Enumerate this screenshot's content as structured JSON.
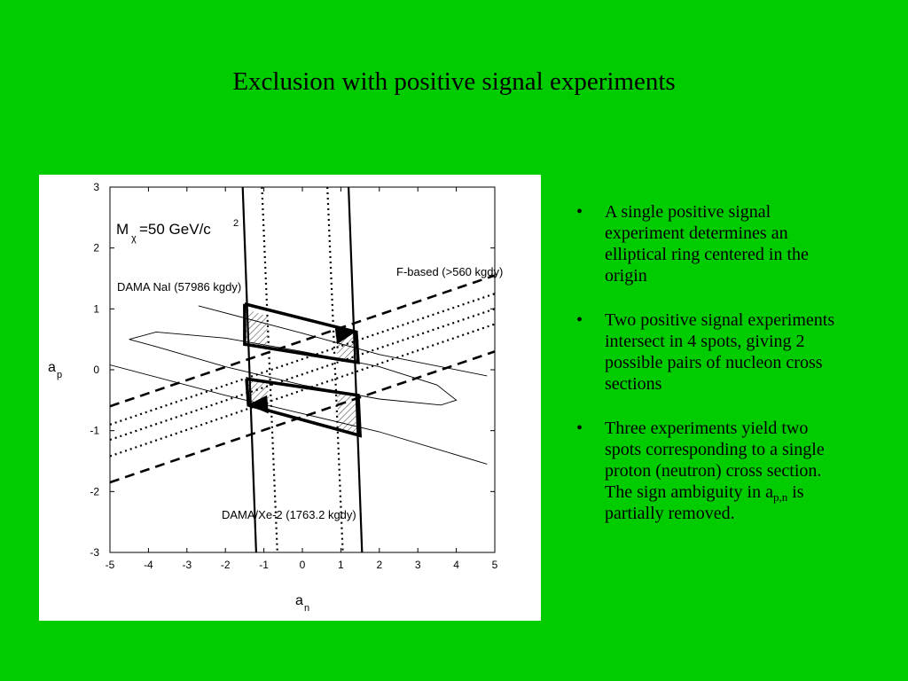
{
  "slide": {
    "title": "Exclusion with positive signal experiments",
    "bullet_symbol": "•",
    "bullets": [
      {
        "text": "A single positive signal experiment determines an elliptical ring centered in the origin"
      },
      {
        "text": "Two positive signal experiments intersect in 4 spots, giving 2 possible pairs of nucleon cross sections"
      },
      {
        "text": "Three experiments yield two spots corresponding to a single proton (neutron) cross section. The sign ambiguity in a",
        "sub": "p,n",
        "text_after": " is partially removed."
      }
    ]
  },
  "chart_data": {
    "type": "line",
    "xlabel": "a",
    "xlabel_sub": "n",
    "ylabel": "a",
    "ylabel_sub": "p",
    "xlim": [
      -5,
      5
    ],
    "ylim": [
      -3,
      3
    ],
    "xticks": [
      -5,
      -4,
      -3,
      -2,
      -1,
      0,
      1,
      2,
      3,
      4,
      5
    ],
    "yticks": [
      -3,
      -2,
      -1,
      0,
      1,
      2,
      3
    ],
    "grid": false,
    "annotations": {
      "mass": {
        "prefix": "M",
        "sub": "χ",
        "body": "=50 GeV/c",
        "sup": "2"
      },
      "nai": "DAMA NaI (57986 kgdy)",
      "fbased": "F-based (>560 kgdy)",
      "xe": "DAMA/Xe-2 (1763.2 kgdy)"
    },
    "series": [
      {
        "style": "solid-thin",
        "points": [
          [
            -4.5,
            0.5
          ],
          [
            -3.8,
            0.62
          ],
          [
            -2,
            0.52
          ],
          [
            0,
            0.3
          ],
          [
            2,
            0.05
          ],
          [
            3.5,
            -0.25
          ],
          [
            4,
            -0.5
          ],
          [
            3.6,
            -0.58
          ],
          [
            2,
            -0.48
          ],
          [
            0,
            -0.25
          ],
          [
            -2,
            0.05
          ],
          [
            -3.8,
            0.38
          ],
          [
            -4.5,
            0.5
          ]
        ]
      },
      {
        "style": "solid-thin",
        "points": [
          [
            -2.7,
            1.05
          ],
          [
            0,
            0.6
          ],
          [
            2,
            0.25
          ],
          [
            4.8,
            -0.1
          ]
        ]
      },
      {
        "style": "solid-thin",
        "points": [
          [
            -5,
            0.08
          ],
          [
            -2,
            -0.42
          ],
          [
            0,
            -0.72
          ],
          [
            2,
            -1.02
          ],
          [
            4.8,
            -1.55
          ]
        ]
      },
      {
        "style": "solid",
        "points": [
          [
            -1.55,
            3
          ],
          [
            -1.2,
            -3
          ]
        ]
      },
      {
        "style": "solid",
        "points": [
          [
            1.2,
            3
          ],
          [
            1.55,
            -3
          ]
        ]
      },
      {
        "style": "dotted",
        "points": [
          [
            -1.05,
            3
          ],
          [
            -0.65,
            -3
          ]
        ]
      },
      {
        "style": "dotted",
        "points": [
          [
            0.65,
            3
          ],
          [
            1.05,
            -3
          ]
        ]
      },
      {
        "style": "dashed",
        "points": [
          [
            -5,
            -0.6
          ],
          [
            5,
            1.55
          ]
        ]
      },
      {
        "style": "dashed",
        "points": [
          [
            -5,
            -1.85
          ],
          [
            5,
            0.3
          ]
        ]
      },
      {
        "style": "dotted",
        "points": [
          [
            -5,
            -0.9
          ],
          [
            5,
            1.25
          ]
        ]
      },
      {
        "style": "dotted",
        "points": [
          [
            -5,
            -1.15
          ],
          [
            5,
            1.0
          ]
        ]
      },
      {
        "style": "dotted",
        "points": [
          [
            -5,
            -1.42
          ],
          [
            5,
            0.75
          ]
        ]
      },
      {
        "style": "bold-box",
        "points": [
          [
            -1.5,
            1.08
          ],
          [
            1.4,
            0.62
          ],
          [
            1.45,
            0.12
          ],
          [
            -1.5,
            0.42
          ],
          [
            -1.5,
            1.08
          ]
        ]
      },
      {
        "style": "bold-box",
        "points": [
          [
            -1.45,
            -0.15
          ],
          [
            1.45,
            -0.42
          ],
          [
            1.5,
            -1.08
          ],
          [
            -1.4,
            -0.58
          ],
          [
            -1.45,
            -0.15
          ]
        ]
      }
    ],
    "regions": [
      {
        "fill": "hatch",
        "points": [
          [
            -1.5,
            1.0
          ],
          [
            -0.9,
            0.88
          ],
          [
            -0.9,
            0.32
          ],
          [
            -1.5,
            0.42
          ]
        ]
      },
      {
        "fill": "hatch",
        "points": [
          [
            0.85,
            0.7
          ],
          [
            1.4,
            0.62
          ],
          [
            1.45,
            0.12
          ],
          [
            0.9,
            0.18
          ]
        ]
      },
      {
        "fill": "hatch",
        "points": [
          [
            -1.45,
            -0.15
          ],
          [
            -0.9,
            -0.2
          ],
          [
            -0.85,
            -0.7
          ],
          [
            -1.4,
            -0.58
          ]
        ]
      },
      {
        "fill": "hatch",
        "points": [
          [
            0.9,
            -0.38
          ],
          [
            1.45,
            -0.42
          ],
          [
            1.5,
            -1.08
          ],
          [
            0.95,
            -1.0
          ]
        ]
      },
      {
        "fill": "solid",
        "points": [
          [
            0.85,
            0.68
          ],
          [
            1.38,
            0.62
          ],
          [
            0.9,
            0.42
          ]
        ]
      },
      {
        "fill": "solid",
        "points": [
          [
            -1.42,
            -0.58
          ],
          [
            -0.92,
            -0.42
          ],
          [
            -0.88,
            -0.72
          ]
        ]
      }
    ]
  }
}
